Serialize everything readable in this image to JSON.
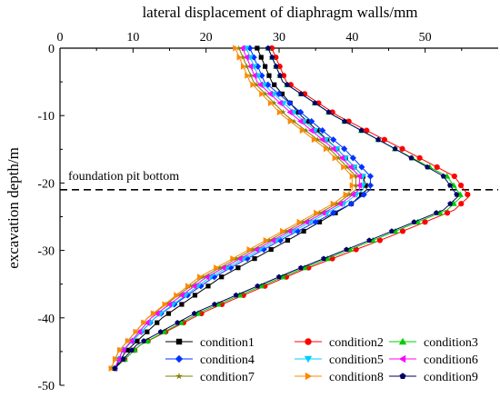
{
  "chart_data": {
    "type": "line",
    "xlabel": "lateral displacement of diaphragm walls/mm",
    "ylabel": "excavation depth/m",
    "xlim": [
      0,
      60
    ],
    "ylim": [
      -50,
      0
    ],
    "xticks": [
      0,
      10,
      20,
      30,
      40,
      50
    ],
    "yticks": [
      0,
      -10,
      -20,
      -30,
      -40,
      -50
    ],
    "x_axis_position": "top",
    "legend_position": "bottom-right",
    "grid": false,
    "annotation": {
      "text": "foundation pit bottom",
      "y": -21,
      "style": "dashed horizontal line"
    },
    "series": [
      {
        "name": "condition1",
        "color": "#000000",
        "marker": "square",
        "points": [
          [
            27,
            0
          ],
          [
            29,
            -5
          ],
          [
            33,
            -10
          ],
          [
            38,
            -15
          ],
          [
            41.5,
            -19
          ],
          [
            42,
            -21
          ],
          [
            40,
            -23
          ],
          [
            32,
            -28
          ],
          [
            22,
            -34
          ],
          [
            14,
            -40
          ],
          [
            9,
            -45
          ],
          [
            7.5,
            -47.5
          ]
        ]
      },
      {
        "name": "condition2",
        "color": "#ff0000",
        "marker": "circle",
        "points": [
          [
            29,
            0
          ],
          [
            31,
            -5
          ],
          [
            38,
            -10
          ],
          [
            47,
            -15
          ],
          [
            54,
            -19
          ],
          [
            56,
            -22
          ],
          [
            54,
            -24
          ],
          [
            45,
            -28
          ],
          [
            33,
            -33
          ],
          [
            20,
            -39
          ],
          [
            11,
            -44
          ],
          [
            7.5,
            -47.5
          ]
        ]
      },
      {
        "name": "condition3",
        "color": "#00cc00",
        "marker": "triangle-up",
        "points": [
          [
            28.5,
            0
          ],
          [
            30.5,
            -5
          ],
          [
            37.5,
            -10
          ],
          [
            46,
            -15
          ],
          [
            53,
            -19
          ],
          [
            55,
            -22
          ],
          [
            53,
            -24
          ],
          [
            44,
            -28
          ],
          [
            32.5,
            -33
          ],
          [
            19.5,
            -39
          ],
          [
            11,
            -44
          ],
          [
            7.5,
            -47.5
          ]
        ]
      },
      {
        "name": "condition4",
        "color": "#0033ff",
        "marker": "diamond",
        "points": [
          [
            26,
            0
          ],
          [
            28,
            -5
          ],
          [
            33.5,
            -10
          ],
          [
            39,
            -15
          ],
          [
            42.5,
            -19
          ],
          [
            42.5,
            -21
          ],
          [
            40,
            -23
          ],
          [
            31,
            -28
          ],
          [
            21,
            -34
          ],
          [
            13,
            -40
          ],
          [
            8.5,
            -45
          ],
          [
            7.5,
            -47.5
          ]
        ]
      },
      {
        "name": "condition5",
        "color": "#00ccff",
        "marker": "triangle-down",
        "points": [
          [
            25.5,
            0
          ],
          [
            27.5,
            -5
          ],
          [
            32.5,
            -10
          ],
          [
            38,
            -15
          ],
          [
            41.5,
            -19
          ],
          [
            41.5,
            -21
          ],
          [
            39,
            -23
          ],
          [
            30.5,
            -28
          ],
          [
            20.5,
            -34
          ],
          [
            13,
            -40
          ],
          [
            8.5,
            -45
          ],
          [
            7.5,
            -47.5
          ]
        ]
      },
      {
        "name": "condition6",
        "color": "#ff00ff",
        "marker": "triangle-left",
        "points": [
          [
            25,
            0
          ],
          [
            27,
            -5
          ],
          [
            32,
            -10
          ],
          [
            37.5,
            -15
          ],
          [
            41,
            -19
          ],
          [
            41,
            -21
          ],
          [
            38.5,
            -23
          ],
          [
            30,
            -28
          ],
          [
            20,
            -34
          ],
          [
            12.5,
            -40
          ],
          [
            8.5,
            -45
          ],
          [
            7.5,
            -47.5
          ]
        ]
      },
      {
        "name": "condition7",
        "color": "#808000",
        "marker": "star",
        "points": [
          [
            24.5,
            0
          ],
          [
            26.5,
            -5
          ],
          [
            31,
            -10
          ],
          [
            37,
            -15
          ],
          [
            40.5,
            -19
          ],
          [
            40.5,
            -21
          ],
          [
            38,
            -23
          ],
          [
            29.5,
            -28
          ],
          [
            19.5,
            -34
          ],
          [
            12,
            -40
          ],
          [
            8,
            -45
          ],
          [
            7,
            -47.5
          ]
        ]
      },
      {
        "name": "condition8",
        "color": "#ff8800",
        "marker": "triangle-right",
        "points": [
          [
            24,
            0
          ],
          [
            26,
            -5
          ],
          [
            30.5,
            -10
          ],
          [
            36.5,
            -15
          ],
          [
            40,
            -19
          ],
          [
            40,
            -21
          ],
          [
            37.5,
            -23
          ],
          [
            29,
            -28
          ],
          [
            19,
            -34
          ],
          [
            12,
            -40
          ],
          [
            8,
            -45
          ],
          [
            7,
            -47.5
          ]
        ]
      },
      {
        "name": "condition9",
        "color": "#000066",
        "marker": "pentagon",
        "points": [
          [
            28.5,
            0
          ],
          [
            30.5,
            -5
          ],
          [
            37.5,
            -10
          ],
          [
            46,
            -15
          ],
          [
            52.5,
            -19
          ],
          [
            54.5,
            -22
          ],
          [
            52.5,
            -24
          ],
          [
            43.5,
            -28
          ],
          [
            32,
            -33
          ],
          [
            19,
            -39
          ],
          [
            10.5,
            -44
          ],
          [
            7.5,
            -47.5
          ]
        ]
      }
    ]
  }
}
